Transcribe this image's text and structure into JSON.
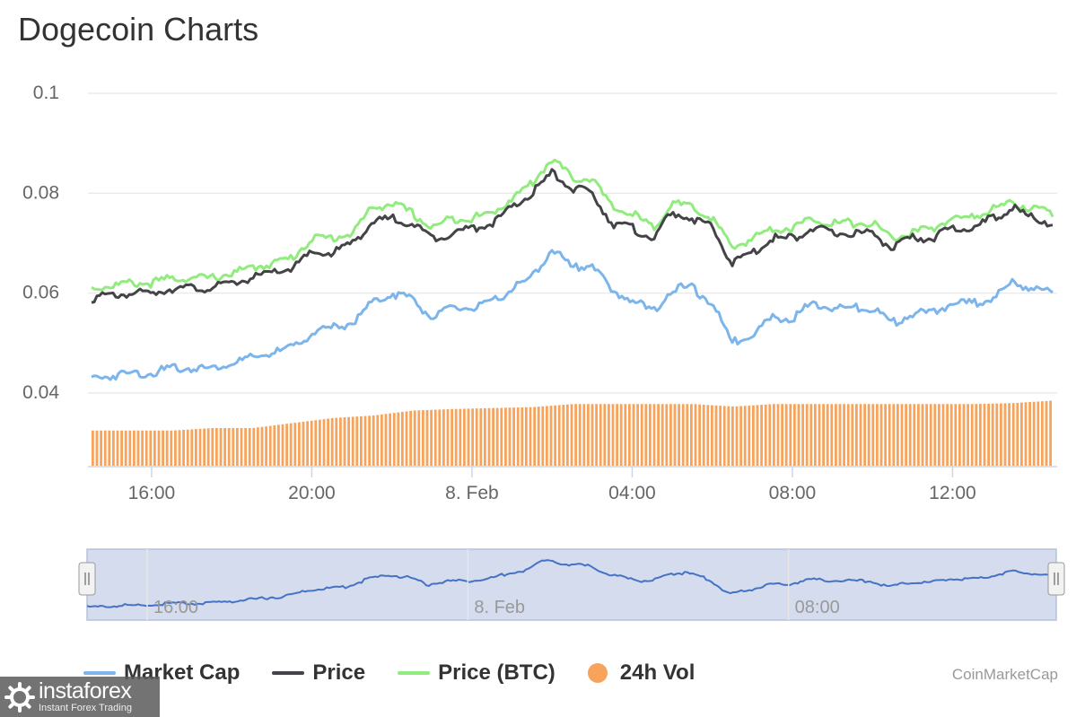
{
  "title": "Dogecoin Charts",
  "credit": "CoinMarketCap",
  "watermark": {
    "brand": "instaforex",
    "tagline": "Instant Forex Trading"
  },
  "colors": {
    "market_cap": "#7cb5ec",
    "price": "#434348",
    "price_btc": "#90ed7d",
    "vol": "#f7a35c",
    "grid": "#e6e6e6",
    "navigator_fill": "#ccd6eb",
    "navigator_line": "#4572c4"
  },
  "legend": [
    {
      "label": "Market Cap",
      "shape": "line",
      "color": "#7cb5ec"
    },
    {
      "label": "Price",
      "shape": "line",
      "color": "#434348"
    },
    {
      "label": "Price (BTC)",
      "shape": "line",
      "color": "#90ed7d"
    },
    {
      "label": "24h Vol",
      "shape": "dot",
      "color": "#f7a35c"
    }
  ],
  "navigator": {
    "tick_labels": [
      "16:00",
      "8. Feb",
      "08:00"
    ]
  },
  "chart_data": {
    "type": "line",
    "title": "Dogecoin Charts",
    "x_unit": "hours since 14:30 on 7 Feb",
    "x_tick_labels": [
      "16:00",
      "20:00",
      "8. Feb",
      "04:00",
      "08:00",
      "12:00"
    ],
    "x_tick_values": [
      1.5,
      5.5,
      9.5,
      13.5,
      17.5,
      21.5
    ],
    "xlim": [
      0,
      24
    ],
    "y_ticks": [
      0.04,
      0.06,
      0.08,
      0.1
    ],
    "y_tick_labels": [
      "0.04",
      "0.06",
      "0.08",
      "0.1"
    ],
    "ylim": [
      0.03,
      0.1
    ],
    "grid": true,
    "legend_position": "bottom",
    "series": [
      {
        "name": "Price (BTC)",
        "color": "#90ed7d",
        "x": [
          0,
          1,
          1.5,
          2,
          3,
          4,
          5,
          5.5,
          6,
          6.5,
          7,
          7.5,
          8,
          8.5,
          9,
          9.5,
          10,
          10.5,
          11,
          11.5,
          12,
          12.5,
          13,
          13.5,
          14,
          14.5,
          15,
          15.5,
          16,
          16.5,
          17,
          17.5,
          18,
          18.5,
          19,
          19.5,
          20,
          20.5,
          21,
          21.5,
          22,
          22.5,
          23,
          23.5,
          24
        ],
        "y": [
          0.061,
          0.062,
          0.062,
          0.063,
          0.063,
          0.065,
          0.067,
          0.071,
          0.071,
          0.072,
          0.077,
          0.078,
          0.076,
          0.073,
          0.075,
          0.075,
          0.076,
          0.079,
          0.082,
          0.087,
          0.083,
          0.083,
          0.077,
          0.076,
          0.073,
          0.078,
          0.077,
          0.075,
          0.069,
          0.071,
          0.073,
          0.073,
          0.075,
          0.074,
          0.074,
          0.074,
          0.071,
          0.072,
          0.073,
          0.075,
          0.075,
          0.077,
          0.078,
          0.077,
          0.076
        ]
      },
      {
        "name": "Price",
        "color": "#434348",
        "x": [
          0,
          1,
          1.5,
          2,
          3,
          4,
          5,
          5.5,
          6,
          6.5,
          7,
          7.5,
          8,
          8.5,
          9,
          9.5,
          10,
          10.5,
          11,
          11.5,
          12,
          12.5,
          13,
          13.5,
          14,
          14.5,
          15,
          15.5,
          16,
          16.5,
          17,
          17.5,
          18,
          18.5,
          19,
          19.5,
          20,
          20.5,
          21,
          21.5,
          22,
          22.5,
          23,
          23.5,
          24
        ],
        "y": [
          0.059,
          0.06,
          0.06,
          0.061,
          0.061,
          0.063,
          0.065,
          0.068,
          0.068,
          0.07,
          0.074,
          0.075,
          0.074,
          0.071,
          0.072,
          0.073,
          0.074,
          0.077,
          0.08,
          0.084,
          0.081,
          0.08,
          0.074,
          0.073,
          0.071,
          0.076,
          0.075,
          0.073,
          0.066,
          0.068,
          0.071,
          0.071,
          0.073,
          0.072,
          0.072,
          0.072,
          0.069,
          0.071,
          0.071,
          0.073,
          0.073,
          0.075,
          0.077,
          0.075,
          0.074
        ]
      },
      {
        "name": "Market Cap",
        "color": "#7cb5ec",
        "x": [
          0,
          1,
          1.5,
          2,
          3,
          4,
          5,
          5.5,
          6,
          6.5,
          7,
          7.5,
          8,
          8.5,
          9,
          9.5,
          10,
          10.5,
          11,
          11.5,
          12,
          12.5,
          13,
          13.5,
          14,
          14.5,
          15,
          15.5,
          16,
          16.5,
          17,
          17.5,
          18,
          18.5,
          19,
          19.5,
          20,
          20.5,
          21,
          21.5,
          22,
          22.5,
          23,
          23.5,
          24
        ],
        "y": [
          0.043,
          0.044,
          0.044,
          0.045,
          0.045,
          0.047,
          0.049,
          0.052,
          0.053,
          0.054,
          0.058,
          0.06,
          0.059,
          0.055,
          0.057,
          0.057,
          0.058,
          0.061,
          0.063,
          0.069,
          0.065,
          0.066,
          0.06,
          0.059,
          0.056,
          0.061,
          0.061,
          0.058,
          0.05,
          0.052,
          0.055,
          0.055,
          0.058,
          0.057,
          0.057,
          0.057,
          0.054,
          0.056,
          0.056,
          0.058,
          0.058,
          0.059,
          0.062,
          0.061,
          0.06
        ]
      },
      {
        "name": "24h Vol",
        "color": "#f7a35c",
        "type": "column",
        "x": [
          0,
          2,
          3,
          4,
          5,
          6,
          7,
          8,
          9,
          10,
          11,
          12,
          13,
          14,
          15,
          16,
          17,
          18,
          19,
          20,
          21,
          22,
          23,
          24
        ],
        "y": [
          0.0325,
          0.0325,
          0.033,
          0.033,
          0.034,
          0.035,
          0.0355,
          0.0365,
          0.0368,
          0.037,
          0.0372,
          0.0378,
          0.0378,
          0.0378,
          0.0378,
          0.0373,
          0.0378,
          0.0378,
          0.0378,
          0.0378,
          0.0378,
          0.0378,
          0.038,
          0.0385
        ]
      }
    ]
  }
}
